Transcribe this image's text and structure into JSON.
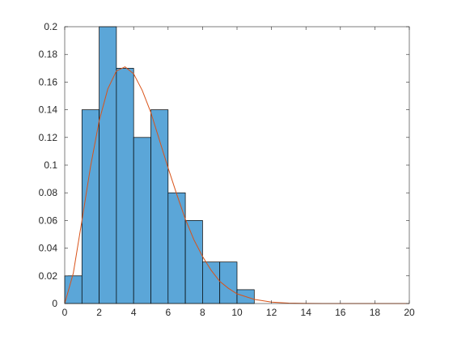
{
  "chart_data": {
    "type": "bar",
    "subtype": "histogram-with-fitted-curve",
    "title": "",
    "xlabel": "",
    "ylabel": "",
    "xlim": [
      0,
      20
    ],
    "ylim": [
      0,
      0.2
    ],
    "xticks": [
      0,
      2,
      4,
      6,
      8,
      10,
      12,
      14,
      16,
      18,
      20
    ],
    "xtick_labels": [
      "0",
      "2",
      "4",
      "6",
      "8",
      "10",
      "12",
      "14",
      "16",
      "18",
      "20"
    ],
    "yticks": [
      0,
      0.02,
      0.04,
      0.06,
      0.08,
      0.1,
      0.12,
      0.14,
      0.16,
      0.18,
      0.2
    ],
    "ytick_labels": [
      "0",
      "0.02",
      "0.04",
      "0.06",
      "0.08",
      "0.1",
      "0.12",
      "0.14",
      "0.16",
      "0.18",
      "0.2"
    ],
    "grid": false,
    "legend": "none",
    "bin_edges": [
      0,
      1,
      2,
      3,
      4,
      5,
      6,
      7,
      8,
      9,
      10,
      11
    ],
    "values": [
      0.02,
      0.14,
      0.2,
      0.17,
      0.12,
      0.14,
      0.08,
      0.06,
      0.03,
      0.03,
      0.01
    ],
    "bar_color": "#5ba6d8",
    "bar_edge_color": "#000000",
    "curve": {
      "x": [
        0,
        0.5,
        1,
        1.5,
        2,
        2.5,
        3,
        3.5,
        4,
        4.5,
        5,
        5.5,
        6,
        6.5,
        7,
        7.5,
        8,
        8.5,
        9,
        9.5,
        10,
        11,
        12,
        13,
        14,
        15,
        16,
        17,
        18,
        19,
        20
      ],
      "y": [
        0,
        0.022,
        0.06,
        0.099,
        0.132,
        0.155,
        0.168,
        0.171,
        0.166,
        0.154,
        0.138,
        0.118,
        0.098,
        0.079,
        0.061,
        0.046,
        0.034,
        0.024,
        0.016,
        0.011,
        0.007,
        0.003,
        0.001,
        0.0003,
        0.0001,
        0,
        0,
        0,
        0,
        0,
        0
      ],
      "color": "#d95319"
    }
  }
}
